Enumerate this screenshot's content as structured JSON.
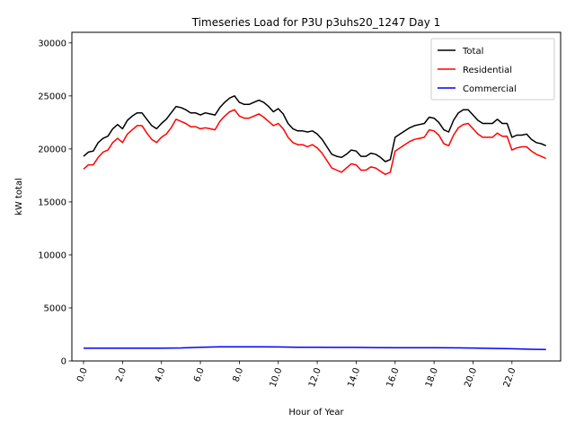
{
  "chart_data": {
    "type": "line",
    "title": "Timeseries Load for P3U p3uhs20_1247  Day 1",
    "xlabel": "Hour of Year",
    "ylabel": "kW total",
    "xlim": [
      -0.6,
      24.5
    ],
    "ylim": [
      0,
      31000
    ],
    "x_ticks": [
      0,
      2,
      4,
      6,
      8,
      10,
      12,
      14,
      16,
      18,
      20,
      22
    ],
    "x_tick_labels": [
      "0.0",
      "2.0",
      "4.0",
      "6.0",
      "8.0",
      "10.0",
      "12.0",
      "14.0",
      "16.0",
      "18.0",
      "20.0",
      "22.0"
    ],
    "y_ticks": [
      0,
      5000,
      10000,
      15000,
      20000,
      25000,
      30000
    ],
    "y_tick_labels": [
      "0",
      "5000",
      "10000",
      "15000",
      "20000",
      "25000",
      "30000"
    ],
    "legend_position": "top-right",
    "grid": false,
    "series": [
      {
        "name": "Total",
        "color": "#000000",
        "x": [
          0,
          0.25,
          0.5,
          0.75,
          1,
          1.25,
          1.5,
          1.75,
          2,
          2.25,
          2.5,
          2.75,
          3,
          3.25,
          3.5,
          3.75,
          4,
          4.25,
          4.5,
          4.75,
          5,
          5.25,
          5.5,
          5.75,
          6,
          6.25,
          6.5,
          6.75,
          7,
          7.25,
          7.5,
          7.75,
          8,
          8.25,
          8.5,
          8.75,
          9,
          9.25,
          9.5,
          9.75,
          10,
          10.25,
          10.5,
          10.75,
          11,
          11.25,
          11.5,
          11.75,
          12,
          12.25,
          12.5,
          12.75,
          13,
          13.25,
          13.5,
          13.75,
          14,
          14.25,
          14.5,
          14.75,
          15,
          15.25,
          15.5,
          15.75,
          16,
          16.25,
          16.5,
          16.75,
          17,
          17.25,
          17.5,
          17.75,
          18,
          18.25,
          18.5,
          18.75,
          19,
          19.25,
          19.5,
          19.75,
          20,
          20.25,
          20.5,
          20.75,
          21,
          21.25,
          21.5,
          21.75,
          22,
          22.25,
          22.5,
          22.75,
          23,
          23.25,
          23.5,
          23.75
        ],
        "y": [
          19300,
          19700,
          19800,
          20600,
          21000,
          21200,
          21900,
          22300,
          21900,
          22700,
          23100,
          23400,
          23400,
          22800,
          22200,
          21900,
          22400,
          22800,
          23400,
          24000,
          23900,
          23700,
          23400,
          23400,
          23200,
          23400,
          23300,
          23200,
          23900,
          24400,
          24800,
          25000,
          24400,
          24200,
          24200,
          24400,
          24600,
          24400,
          24000,
          23500,
          23800,
          23300,
          22400,
          21900,
          21700,
          21700,
          21600,
          21700,
          21400,
          20900,
          20200,
          19500,
          19300,
          19200,
          19500,
          19900,
          19800,
          19300,
          19300,
          19600,
          19500,
          19200,
          18800,
          19000,
          21100,
          21400,
          21700,
          22000,
          22200,
          22300,
          22400,
          23000,
          22900,
          22500,
          21800,
          21600,
          22700,
          23400,
          23700,
          23700,
          23200,
          22700,
          22400,
          22400,
          22400,
          22800,
          22400,
          22400,
          21100,
          21300,
          21300,
          21400,
          20900,
          20600,
          20500,
          20300
        ]
      },
      {
        "name": "Residential",
        "color": "#ff0000",
        "x": [
          0,
          0.25,
          0.5,
          0.75,
          1,
          1.25,
          1.5,
          1.75,
          2,
          2.25,
          2.5,
          2.75,
          3,
          3.25,
          3.5,
          3.75,
          4,
          4.25,
          4.5,
          4.75,
          5,
          5.25,
          5.5,
          5.75,
          6,
          6.25,
          6.5,
          6.75,
          7,
          7.25,
          7.5,
          7.75,
          8,
          8.25,
          8.5,
          8.75,
          9,
          9.25,
          9.5,
          9.75,
          10,
          10.25,
          10.5,
          10.75,
          11,
          11.25,
          11.5,
          11.75,
          12,
          12.25,
          12.5,
          12.75,
          13,
          13.25,
          13.5,
          13.75,
          14,
          14.25,
          14.5,
          14.75,
          15,
          15.25,
          15.5,
          15.75,
          16,
          16.25,
          16.5,
          16.75,
          17,
          17.25,
          17.5,
          17.75,
          18,
          18.25,
          18.5,
          18.75,
          19,
          19.25,
          19.5,
          19.75,
          20,
          20.25,
          20.5,
          20.75,
          21,
          21.25,
          21.5,
          21.75,
          22,
          22.25,
          22.5,
          22.75,
          23,
          23.25,
          23.5,
          23.75
        ],
        "y": [
          18100,
          18500,
          18500,
          19200,
          19700,
          19900,
          20600,
          21000,
          20600,
          21400,
          21800,
          22200,
          22200,
          21500,
          20900,
          20600,
          21100,
          21400,
          22000,
          22800,
          22600,
          22400,
          22100,
          22100,
          21900,
          22000,
          21900,
          21800,
          22600,
          23100,
          23500,
          23700,
          23100,
          22900,
          22900,
          23100,
          23300,
          23000,
          22600,
          22200,
          22400,
          21900,
          21100,
          20600,
          20400,
          20400,
          20200,
          20400,
          20100,
          19600,
          18900,
          18200,
          18000,
          17800,
          18200,
          18600,
          18500,
          18000,
          18000,
          18300,
          18200,
          17900,
          17600,
          17800,
          19800,
          20100,
          20400,
          20700,
          20900,
          21000,
          21100,
          21800,
          21700,
          21300,
          20500,
          20300,
          21300,
          22000,
          22300,
          22400,
          21900,
          21400,
          21100,
          21100,
          21100,
          21500,
          21200,
          21200,
          19900,
          20100,
          20200,
          20200,
          19800,
          19500,
          19300,
          19100
        ]
      },
      {
        "name": "Commercial",
        "color": "#0000ff",
        "x": [
          0,
          1,
          2,
          3,
          4,
          5,
          6,
          7,
          8,
          9,
          10,
          11,
          12,
          13,
          14,
          15,
          16,
          17,
          18,
          19,
          20,
          21,
          22,
          23,
          23.75
        ],
        "y": [
          1200,
          1200,
          1210,
          1210,
          1210,
          1230,
          1300,
          1330,
          1330,
          1330,
          1320,
          1300,
          1290,
          1280,
          1280,
          1260,
          1250,
          1250,
          1250,
          1240,
          1220,
          1190,
          1150,
          1100,
          1080
        ]
      }
    ]
  }
}
